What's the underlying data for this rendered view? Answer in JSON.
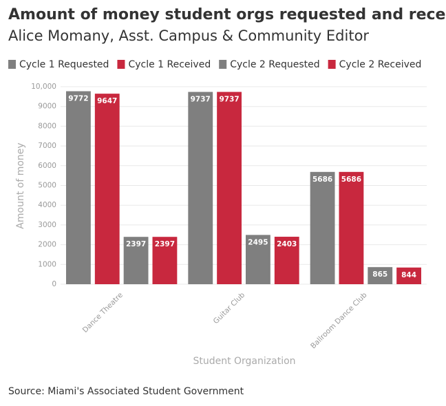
{
  "chart_data": {
    "type": "bar",
    "title": "Amount of money student orgs requested and received",
    "subtitle": "Alice Momany, Asst. Campus & Community Editor",
    "source": "Source: Miami's Associated Student Government",
    "x_label": "Student Organization",
    "y_label": "Amount of money",
    "categories": [
      "Dance Theatre",
      "Guitar Club",
      "Ballroom Dance Club"
    ],
    "series": [
      {
        "name": "Cycle 1 Requested",
        "color": "#7f7f7f",
        "values": [
          9772,
          9737,
          5686
        ]
      },
      {
        "name": "Cycle 1 Received",
        "color": "#c8283e",
        "values": [
          9647,
          9737,
          5686
        ]
      },
      {
        "name": "Cycle 2 Requested",
        "color": "#7f7f7f",
        "values": [
          2397,
          2495,
          865
        ]
      },
      {
        "name": "Cycle 2 Received",
        "color": "#c8283e",
        "values": [
          2397,
          2403,
          844
        ]
      }
    ],
    "ylim": [
      0,
      10000
    ],
    "yticks": [
      0,
      1000,
      2000,
      3000,
      4000,
      5000,
      6000,
      7000,
      8000,
      9000,
      {
        "value": 10000,
        "label": "10,000"
      }
    ],
    "grid": true,
    "legend": "top"
  }
}
